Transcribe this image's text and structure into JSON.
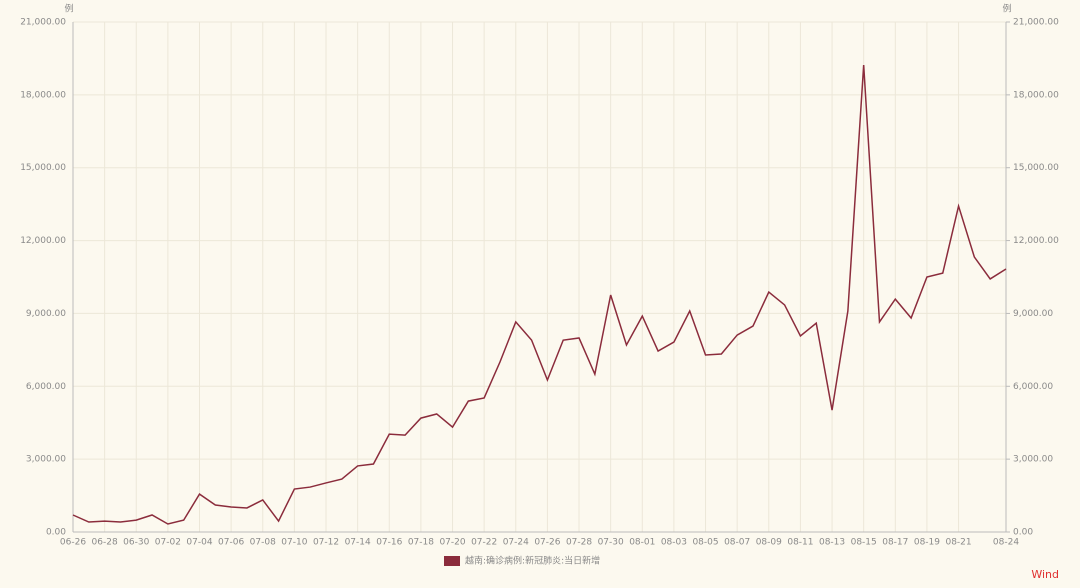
{
  "chart_data": {
    "type": "line",
    "ylabel": "例",
    "y2label": "例",
    "categories": [
      "06-26",
      null,
      "06-28",
      null,
      "06-30",
      null,
      "07-02",
      null,
      "07-04",
      null,
      "07-06",
      null,
      "07-08",
      null,
      "07-10",
      null,
      "07-12",
      null,
      "07-14",
      null,
      "07-16",
      null,
      "07-18",
      null,
      "07-20",
      null,
      "07-22",
      null,
      "07-24",
      null,
      "07-26",
      null,
      "07-28",
      null,
      "07-30",
      null,
      "08-01",
      null,
      "08-03",
      null,
      "08-05",
      null,
      "08-07",
      null,
      "08-09",
      null,
      "08-11",
      null,
      "08-13",
      null,
      "08-15",
      null,
      "08-17",
      null,
      "08-19",
      null,
      "08-21",
      null,
      null,
      "08-24"
    ],
    "series": [
      {
        "name": "越南:确诊病例:新冠肺炎:当日新增",
        "color": "#8b2c3c",
        "values": [
          700,
          410,
          450,
          410,
          490,
          700,
          330,
          490,
          1560,
          1110,
          1030,
          990,
          1320,
          450,
          1770,
          1850,
          2020,
          2180,
          2720,
          2800,
          4030,
          3990,
          4690,
          4860,
          4320,
          5390,
          5520,
          7000,
          8650,
          7900,
          6260,
          7900,
          7990,
          6500,
          9760,
          7700,
          8890,
          7450,
          7820,
          9100,
          7290,
          7330,
          8110,
          8480,
          9880,
          9350,
          8070,
          8600,
          5020,
          9100,
          19230,
          8650,
          9590,
          8810,
          10500,
          10660,
          13420,
          11320,
          10420,
          10830
        ]
      }
    ],
    "ylim": [
      0,
      21000
    ],
    "yticks": [
      {
        "value": 0,
        "label": "0.00"
      },
      {
        "value": 3000,
        "label": "3,000.00"
      },
      {
        "value": 6000,
        "label": "6,000.00"
      },
      {
        "value": 9000,
        "label": "9,000.00"
      },
      {
        "value": 12000,
        "label": "12,000.00"
      },
      {
        "value": 15000,
        "label": "15,000.00"
      },
      {
        "value": 18000,
        "label": "18,000.00"
      },
      {
        "value": 21000,
        "label": "21,000.00"
      }
    ],
    "y2lim": [
      0,
      21000
    ],
    "y2ticks": [
      {
        "value": 0,
        "label": "0.00"
      },
      {
        "value": 3000,
        "label": "3,000.00"
      },
      {
        "value": 6000,
        "label": "6,000.00"
      },
      {
        "value": 9000,
        "label": "9,000.00"
      },
      {
        "value": 12000,
        "label": "12,000.00"
      },
      {
        "value": 15000,
        "label": "15,000.00"
      },
      {
        "value": 18000,
        "label": "18,000.00"
      },
      {
        "value": 21000,
        "label": "21,000.00"
      }
    ],
    "grid": true,
    "source": "Wind"
  }
}
